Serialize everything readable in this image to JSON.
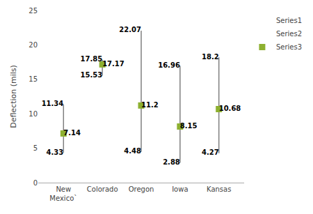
{
  "chart_data": {
    "type": "range",
    "categories": [
      "New\nMexico`",
      "Colorado",
      "Oregon",
      "Iowa",
      "Kansas"
    ],
    "series": [
      {
        "name": "Series1",
        "color": "#7f7f7f",
        "values": [
          11.34,
          17.85,
          22.07,
          16.96,
          18.2
        ]
      },
      {
        "name": "Series2",
        "color": "#7f7f7f",
        "values": [
          4.33,
          15.53,
          4.48,
          2.88,
          4.27
        ]
      },
      {
        "name": "Series3",
        "color": "#8db030",
        "marker": "square",
        "values": [
          7.14,
          17.17,
          11.2,
          8.15,
          10.68
        ]
      }
    ],
    "y_label": "Deflection (mils)",
    "ylim": [
      0,
      25
    ],
    "yticks": [
      0,
      5,
      10,
      15,
      20,
      25
    ],
    "grid": false,
    "legend": "upper right",
    "data_labels": true
  }
}
